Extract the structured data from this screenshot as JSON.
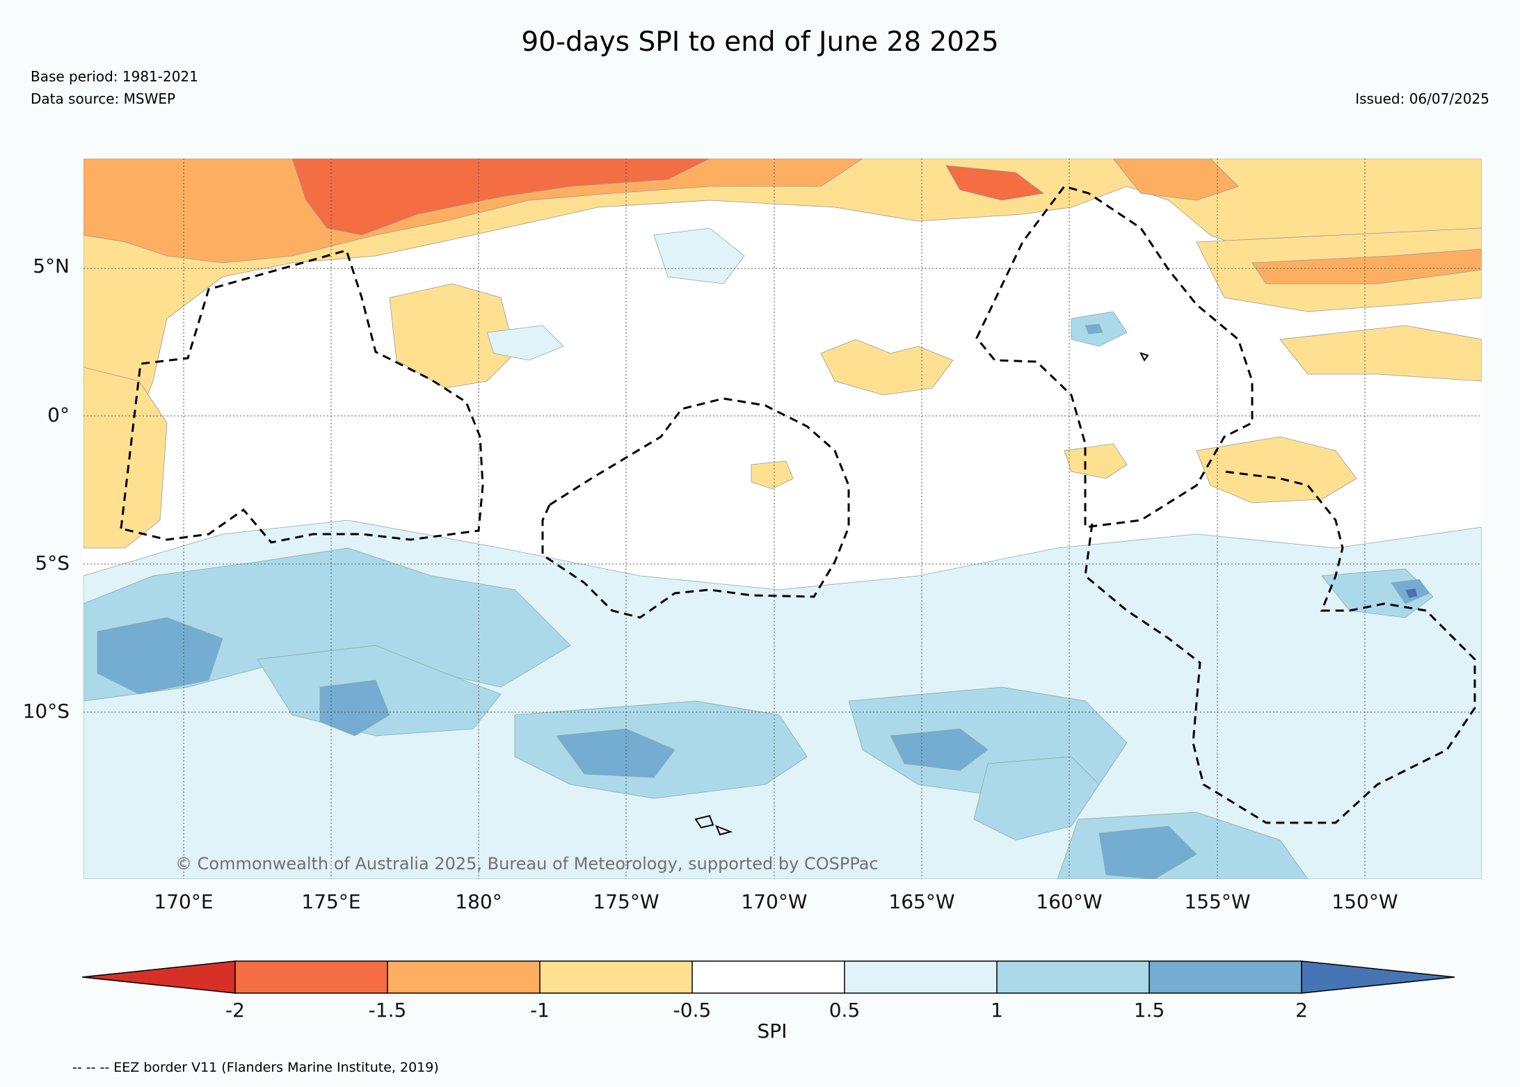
{
  "header": {
    "title": "90-days SPI to end of June 28 2025",
    "base_period": "Base period: 1981-2021",
    "data_source": "Data source: MSWEP",
    "issued": "Issued: 06/07/2025"
  },
  "map": {
    "lat_labels": [
      "5°N",
      "0°",
      "5°S",
      "10°S"
    ],
    "lon_labels": [
      "170°E",
      "175°E",
      "180°",
      "175°W",
      "170°W",
      "165°W",
      "160°W",
      "155°W",
      "150°W"
    ],
    "copyright": "© Commonwealth of Australia 2025, Bureau of Meteorology, supported by COSPPac",
    "colors": {
      "lt_-2": "#d73027",
      "-2_-1.5": "#f46d43",
      "-1.5_-1": "#fdae61",
      "-1_-0.5": "#fee090",
      "-0.5_0.5": "#ffffff",
      "0.5_1": "#e0f3f8",
      "1_1.5": "#abd9e9",
      "1.5_2": "#74add1",
      "gt_2": "#4575b4"
    }
  },
  "colorbar": {
    "ticks": [
      "-2",
      "-1.5",
      "-1",
      "-0.5",
      "0.5",
      "1",
      "1.5",
      "2"
    ],
    "label": "SPI"
  },
  "footer": {
    "eez_note": "-- -- -- EEZ border V11 (Flanders Marine Institute, 2019)"
  }
}
